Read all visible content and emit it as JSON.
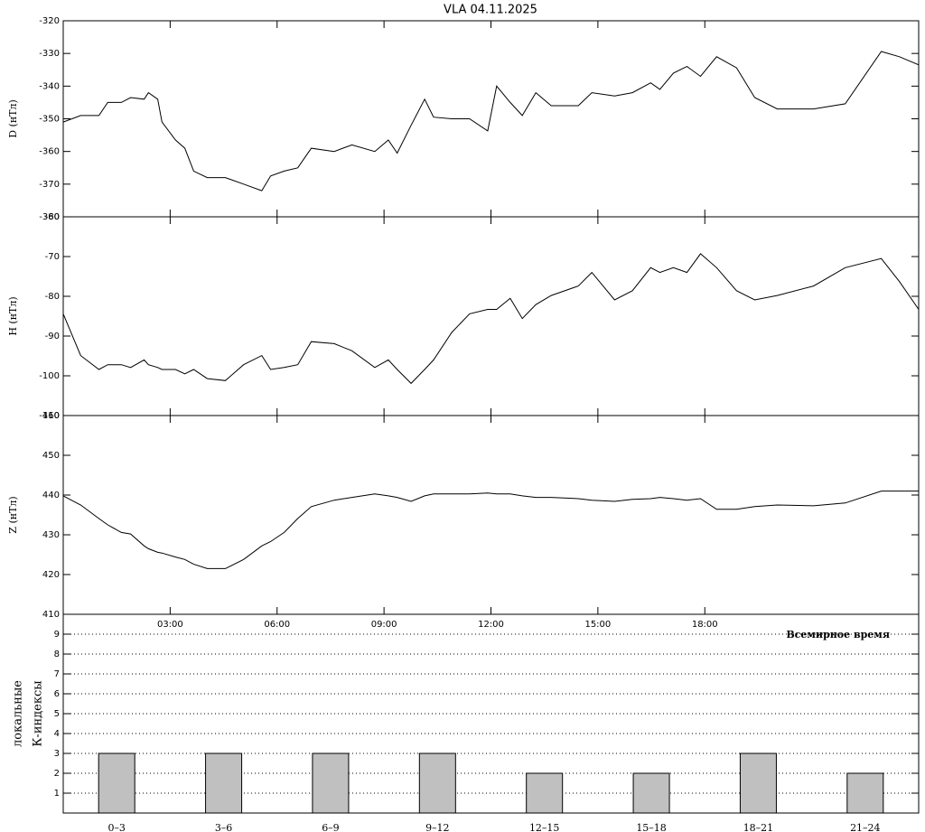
{
  "chart_data": [
    {
      "type": "line",
      "title": "VLA   04.11.2025",
      "ylabel": "D (нТл)",
      "color": "#000000",
      "x": [
        0,
        0.49,
        1,
        1.25,
        1.63,
        1.89,
        2.27,
        2.39,
        2.65,
        2.77,
        3.15,
        3.41,
        3.66,
        4.04,
        4.55,
        5.06,
        5.57,
        5.82,
        6.2,
        6.58,
        6.96,
        7.6,
        8.1,
        8.74,
        9.12,
        9.37,
        9.76,
        10.14,
        10.39,
        10.9,
        11.4,
        11.91,
        12.16,
        12.54,
        12.88,
        13.26,
        13.69,
        14.45,
        14.83,
        15.47,
        15.97,
        16.48,
        16.74,
        17.12,
        17.5,
        17.88,
        18.33,
        18.89,
        19.4,
        20.03,
        21.05,
        21.94,
        22.95,
        23.46,
        24
      ],
      "values": [
        -351,
        -349,
        -349,
        -345,
        -345,
        -343.5,
        -344,
        -342,
        -344,
        -351,
        -356.5,
        -359,
        -366,
        -368,
        -368,
        -370,
        -372,
        -367.5,
        -366,
        -365,
        -359,
        -360,
        -358,
        -360,
        -356.5,
        -360.5,
        -352,
        -344,
        -349.5,
        -350,
        -350,
        -353.7,
        -340,
        -345,
        -349,
        -342,
        -346,
        -346,
        -342,
        -343,
        -342,
        -339,
        -341,
        -336,
        -334,
        -337,
        -331,
        -334.4,
        -343.5,
        -347,
        -347,
        -345.4,
        -329.4,
        -331,
        -333.5
      ],
      "xlim": [
        0,
        24
      ],
      "ylim": [
        -380,
        -320
      ],
      "yticks": [
        -320,
        -330,
        -340,
        -350,
        -360,
        -370,
        -380
      ]
    },
    {
      "type": "line",
      "ylabel": "H (нТл)",
      "color": "#000000",
      "x": [
        0,
        0.49,
        1,
        1.25,
        1.63,
        1.89,
        2.27,
        2.39,
        2.65,
        2.77,
        3.15,
        3.41,
        3.66,
        4.04,
        4.55,
        5.06,
        5.57,
        5.82,
        6.2,
        6.58,
        6.96,
        7.6,
        8.1,
        8.74,
        9.12,
        9.37,
        9.76,
        10.14,
        10.39,
        10.9,
        11.4,
        11.91,
        12.16,
        12.54,
        12.88,
        13.26,
        13.69,
        14.45,
        14.83,
        15.47,
        15.97,
        16.48,
        16.74,
        17.12,
        17.5,
        17.88,
        18.33,
        18.89,
        19.4,
        20.03,
        21.05,
        21.94,
        22.95,
        23.46,
        24
      ],
      "values": [
        -84.4,
        -94.9,
        -98.4,
        -97.2,
        -97.2,
        -97.9,
        -96,
        -97.2,
        -97.9,
        -98.4,
        -98.4,
        -99.5,
        -98.4,
        -100.7,
        -101.2,
        -97.2,
        -94.9,
        -98.4,
        -97.9,
        -97.2,
        -91.4,
        -91.9,
        -93.7,
        -97.9,
        -96,
        -98.4,
        -101.9,
        -98.4,
        -96,
        -89.1,
        -84.4,
        -83.3,
        -83.3,
        -80.5,
        -85.6,
        -82.1,
        -79.8,
        -77.4,
        -74,
        -80.9,
        -78.6,
        -72.8,
        -74,
        -72.8,
        -74,
        -69.3,
        -72.8,
        -78.6,
        -80.9,
        -79.8,
        -77.4,
        -72.8,
        -70.5,
        -76.3,
        -83.3
      ],
      "xlim": [
        0,
        24
      ],
      "ylim": [
        -110,
        -60
      ],
      "yticks": [
        -60,
        -70,
        -80,
        -90,
        -100,
        -110
      ]
    },
    {
      "type": "line",
      "ylabel": "Z (нТл)",
      "xlabel": "Всемирное время",
      "color": "#000000",
      "x": [
        0,
        0.49,
        1,
        1.25,
        1.63,
        1.89,
        2.27,
        2.39,
        2.65,
        2.77,
        3.15,
        3.41,
        3.66,
        4.04,
        4.55,
        5.06,
        5.57,
        5.82,
        6.2,
        6.58,
        6.96,
        7.6,
        8.1,
        8.74,
        9.12,
        9.37,
        9.76,
        10.14,
        10.39,
        10.9,
        11.4,
        11.91,
        12.16,
        12.54,
        12.88,
        13.26,
        13.69,
        14.45,
        14.83,
        15.47,
        15.97,
        16.48,
        16.74,
        17.12,
        17.5,
        17.88,
        18.33,
        18.89,
        19.4,
        20.03,
        21.05,
        21.94,
        22.95,
        23.46,
        24
      ],
      "values": [
        439.8,
        437.5,
        434.1,
        432.5,
        430.6,
        430.2,
        427.2,
        426.5,
        425.6,
        425.4,
        424.4,
        423.8,
        422.6,
        421.5,
        421.5,
        423.8,
        427.2,
        428.3,
        430.6,
        434.1,
        437.1,
        438.7,
        439.4,
        440.3,
        439.8,
        439.4,
        438.4,
        439.8,
        440.3,
        440.3,
        440.3,
        440.5,
        440.3,
        440.3,
        439.8,
        439.4,
        439.4,
        439.1,
        438.7,
        438.4,
        438.9,
        439.1,
        439.4,
        439.1,
        438.7,
        439.1,
        436.4,
        436.4,
        437.1,
        437.5,
        437.3,
        438,
        441,
        441,
        441
      ],
      "xlim": [
        0,
        24
      ],
      "ylim": [
        410,
        460
      ],
      "yticks": [
        410,
        420,
        430,
        440,
        450,
        460
      ],
      "xticks": [
        {
          "value": 3,
          "label": "03:00"
        },
        {
          "value": 6,
          "label": "06:00"
        },
        {
          "value": 9,
          "label": "09:00"
        },
        {
          "value": 12,
          "label": "12:00"
        },
        {
          "value": 15,
          "label": "15:00"
        },
        {
          "value": 18,
          "label": "18:00"
        }
      ]
    },
    {
      "type": "bar",
      "ylabel": [
        "локальные",
        "К-индексы"
      ],
      "color": "#c0c0c0",
      "categories": [
        "0–3",
        "3–6",
        "6–9",
        "9–12",
        "12–15",
        "15–18",
        "18–21",
        "21–24"
      ],
      "values": [
        3,
        3,
        3,
        3,
        2,
        2,
        3,
        2
      ],
      "ylim": [
        0,
        10
      ],
      "yticks": [
        1,
        2,
        3,
        4,
        5,
        6,
        7,
        8,
        9
      ],
      "grid": true
    }
  ]
}
